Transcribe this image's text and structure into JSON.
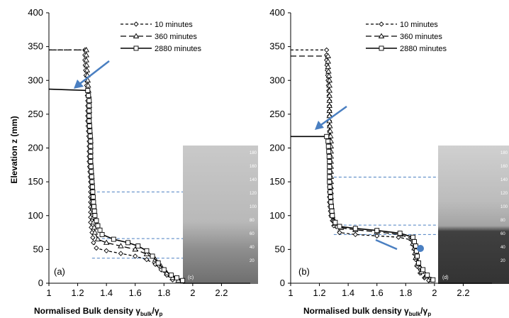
{
  "chart_data": [
    {
      "type": "line",
      "panel_label": "(a)",
      "ylabel": "Elevation z (mm)",
      "xlabel": "Normalised Bulk density γ",
      "xlabel_sub1": "bulk",
      "xlabel_mid": "/γ",
      "xlabel_sub2": "p",
      "xlim": [
        1,
        2.4
      ],
      "ylim": [
        0,
        400
      ],
      "xticks": [
        "1",
        "1.2",
        "1.4",
        "1.6",
        "1.8",
        "2",
        "2.2"
      ],
      "yticks": [
        "0",
        "50",
        "100",
        "150",
        "200",
        "250",
        "300",
        "350",
        "400"
      ],
      "legend_position": "top-right",
      "series": [
        {
          "name": "10  minutes",
          "marker": "diamond",
          "dash": "4,3",
          "points": [
            [
              1.0,
              345
            ],
            [
              1.25,
              345
            ],
            [
              1.25,
              330
            ],
            [
              1.26,
              300
            ],
            [
              1.27,
              270
            ],
            [
              1.27,
              240
            ],
            [
              1.28,
              210
            ],
            [
              1.28,
              180
            ],
            [
              1.29,
              150
            ],
            [
              1.29,
              120
            ],
            [
              1.29,
              90
            ],
            [
              1.3,
              75
            ],
            [
              1.31,
              60
            ],
            [
              1.33,
              52
            ],
            [
              1.4,
              48
            ],
            [
              1.5,
              44
            ],
            [
              1.6,
              40
            ],
            [
              1.68,
              35
            ],
            [
              1.74,
              28
            ],
            [
              1.78,
              20
            ],
            [
              1.82,
              12
            ],
            [
              1.86,
              5
            ]
          ]
        },
        {
          "name": "360 minutes",
          "marker": "triangle",
          "dash": "8,4",
          "points": [
            [
              1.0,
              345
            ],
            [
              1.26,
              345
            ],
            [
              1.26,
              330
            ],
            [
              1.27,
              300
            ],
            [
              1.28,
              270
            ],
            [
              1.28,
              240
            ],
            [
              1.29,
              210
            ],
            [
              1.29,
              180
            ],
            [
              1.3,
              150
            ],
            [
              1.3,
              120
            ],
            [
              1.31,
              90
            ],
            [
              1.32,
              75
            ],
            [
              1.34,
              65
            ],
            [
              1.4,
              60
            ],
            [
              1.5,
              55
            ],
            [
              1.6,
              50
            ],
            [
              1.68,
              43
            ],
            [
              1.74,
              35
            ],
            [
              1.78,
              25
            ],
            [
              1.82,
              15
            ],
            [
              1.86,
              8
            ],
            [
              1.9,
              4
            ]
          ]
        },
        {
          "name": "2880 minutes",
          "marker": "square",
          "dash": "",
          "points": [
            [
              1.0,
              287
            ],
            [
              1.27,
              285
            ],
            [
              1.28,
              270
            ],
            [
              1.28,
              240
            ],
            [
              1.29,
              210
            ],
            [
              1.29,
              180
            ],
            [
              1.3,
              150
            ],
            [
              1.31,
              120
            ],
            [
              1.32,
              100
            ],
            [
              1.34,
              85
            ],
            [
              1.37,
              72
            ],
            [
              1.45,
              65
            ],
            [
              1.55,
              60
            ],
            [
              1.62,
              55
            ],
            [
              1.68,
              48
            ],
            [
              1.72,
              40
            ],
            [
              1.76,
              30
            ],
            [
              1.8,
              20
            ],
            [
              1.85,
              12
            ],
            [
              1.89,
              8
            ],
            [
              1.93,
              4
            ]
          ]
        }
      ],
      "photo": {
        "label": "(c)",
        "ticks": [
          "20",
          "40",
          "60",
          "80",
          "100",
          "120",
          "140",
          "160",
          "180"
        ]
      },
      "arrow_color": "#4a7fc1"
    },
    {
      "type": "line",
      "panel_label": "(b)",
      "ylabel": "",
      "xlabel": "Normalised bulk density γ",
      "xlabel_sub1": "bulk",
      "xlabel_mid": "/γ",
      "xlabel_sub2": "p",
      "xlim": [
        1,
        2.4
      ],
      "ylim": [
        0,
        400
      ],
      "xticks": [
        "1",
        "1.2",
        "1.4",
        "1.6",
        "1.8",
        "2",
        "2.2"
      ],
      "yticks": [
        "0",
        "50",
        "100",
        "150",
        "200",
        "250",
        "300",
        "350",
        "400"
      ],
      "legend_position": "top-right",
      "series": [
        {
          "name": "10  minutes",
          "marker": "diamond",
          "dash": "4,3",
          "points": [
            [
              1.0,
              345
            ],
            [
              1.25,
              345
            ],
            [
              1.25,
              330
            ],
            [
              1.26,
              300
            ],
            [
              1.27,
              270
            ],
            [
              1.27,
              240
            ],
            [
              1.27,
              210
            ],
            [
              1.27,
              180
            ],
            [
              1.27,
              150
            ],
            [
              1.27,
              120
            ],
            [
              1.28,
              100
            ],
            [
              1.3,
              85
            ],
            [
              1.34,
              75
            ],
            [
              1.45,
              72
            ],
            [
              1.6,
              70
            ],
            [
              1.75,
              68
            ],
            [
              1.84,
              64
            ],
            [
              1.86,
              50
            ],
            [
              1.87,
              35
            ],
            [
              1.88,
              25
            ],
            [
              1.9,
              15
            ],
            [
              1.93,
              8
            ],
            [
              1.96,
              4
            ]
          ]
        },
        {
          "name": "360 minutes",
          "marker": "triangle",
          "dash": "8,4",
          "points": [
            [
              1.0,
              336
            ],
            [
              1.26,
              336
            ],
            [
              1.26,
              320
            ],
            [
              1.27,
              300
            ],
            [
              1.27,
              270
            ],
            [
              1.27,
              240
            ],
            [
              1.28,
              210
            ],
            [
              1.28,
              180
            ],
            [
              1.28,
              150
            ],
            [
              1.28,
              120
            ],
            [
              1.29,
              100
            ],
            [
              1.31,
              88
            ],
            [
              1.35,
              82
            ],
            [
              1.45,
              79
            ],
            [
              1.6,
              76
            ],
            [
              1.76,
              72
            ],
            [
              1.84,
              66
            ],
            [
              1.86,
              52
            ],
            [
              1.87,
              38
            ],
            [
              1.88,
              28
            ],
            [
              1.91,
              17
            ],
            [
              1.94,
              10
            ],
            [
              1.98,
              5
            ]
          ]
        },
        {
          "name": "2880 minutes",
          "marker": "square",
          "dash": "",
          "points": [
            [
              1.0,
              217
            ],
            [
              1.25,
              217
            ],
            [
              1.26,
              210
            ],
            [
              1.27,
              180
            ],
            [
              1.27,
              150
            ],
            [
              1.28,
              120
            ],
            [
              1.29,
              100
            ],
            [
              1.31,
              90
            ],
            [
              1.34,
              84
            ],
            [
              1.45,
              81
            ],
            [
              1.6,
              78
            ],
            [
              1.76,
              74
            ],
            [
              1.85,
              68
            ],
            [
              1.87,
              55
            ],
            [
              1.88,
              40
            ],
            [
              1.89,
              30
            ],
            [
              1.92,
              20
            ],
            [
              1.95,
              12
            ],
            [
              1.99,
              5
            ]
          ]
        }
      ],
      "photo": {
        "label": "(d)",
        "ticks": [
          "20",
          "40",
          "60",
          "80",
          "100",
          "120",
          "140",
          "160",
          "180"
        ]
      },
      "arrow_color": "#4a7fc1"
    }
  ]
}
